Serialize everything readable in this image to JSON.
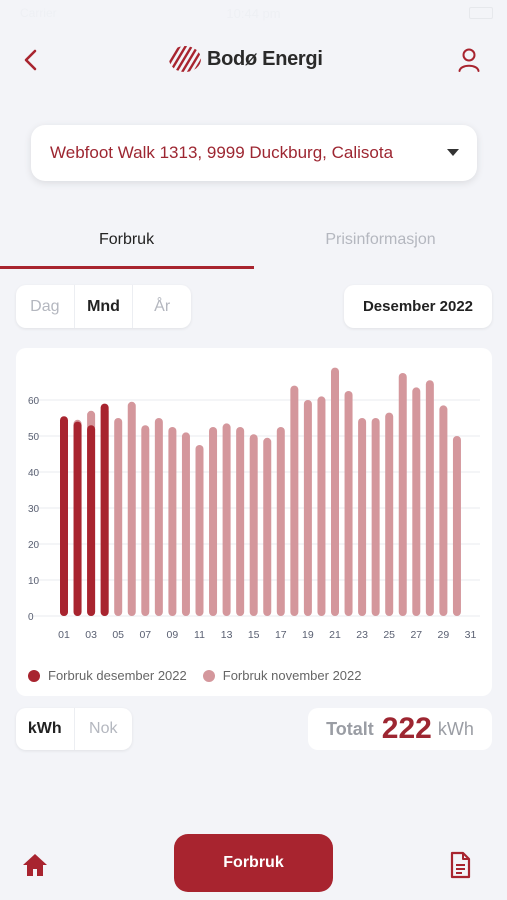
{
  "status_bar": {
    "carrier": "Carrier",
    "time": "10:44 pm"
  },
  "header": {
    "logo_text": "Bodø Energi"
  },
  "address": {
    "selected": "Webfoot Walk 1313, 9999 Duckburg, Calisota"
  },
  "tabs": [
    {
      "label": "Forbruk",
      "active": true
    },
    {
      "label": "Prisinformasjon",
      "active": false
    }
  ],
  "period_selector": {
    "options": [
      {
        "label": "Dag",
        "active": false
      },
      {
        "label": "Mnd",
        "active": true
      },
      {
        "label": "År",
        "active": false
      }
    ]
  },
  "month_selector": {
    "label": "Desember 2022"
  },
  "chart_data": {
    "type": "bar",
    "y_ticks": [
      0,
      10,
      20,
      30,
      40,
      50,
      60
    ],
    "ylim": [
      0,
      70
    ],
    "x_tick_labels": [
      "01",
      "03",
      "05",
      "07",
      "09",
      "11",
      "13",
      "15",
      "17",
      "19",
      "21",
      "23",
      "25",
      "27",
      "29",
      "31"
    ],
    "days": [
      1,
      2,
      3,
      4,
      5,
      6,
      7,
      8,
      9,
      10,
      11,
      12,
      13,
      14,
      15,
      16,
      17,
      18,
      19,
      20,
      21,
      22,
      23,
      24,
      25,
      26,
      27,
      28,
      29,
      30,
      31
    ],
    "grid": true,
    "legend_position": "bottom-left",
    "series": [
      {
        "name": "Forbruk desember 2022",
        "color": "#a8242f",
        "values": [
          55.5,
          54,
          53,
          59
        ]
      },
      {
        "name": "Forbruk november 2022",
        "color": "#d4979c",
        "values": [
          54,
          54.5,
          57,
          58,
          55,
          59.5,
          53,
          55,
          52.5,
          51,
          47.5,
          52.5,
          53.5,
          52.5,
          50.5,
          49.5,
          52.5,
          64,
          60,
          61,
          69,
          62.5,
          55,
          55,
          56.5,
          67.5,
          63.5,
          65.5,
          58.5,
          50
        ]
      }
    ]
  },
  "unit_selector": {
    "options": [
      {
        "label": "kWh",
        "active": true
      },
      {
        "label": "Nok",
        "active": false
      }
    ]
  },
  "total": {
    "label": "Totalt",
    "value": "222",
    "unit": "kWh"
  },
  "bottom_nav": {
    "main_label": "Forbruk"
  },
  "colors": {
    "accent": "#a8242f",
    "accent_light": "#d4979c",
    "background": "#f3f4f8"
  }
}
